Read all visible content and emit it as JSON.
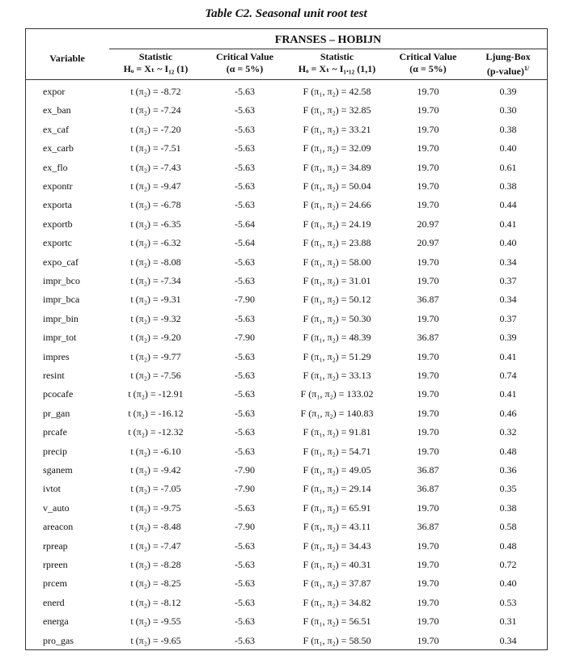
{
  "title": "Table C2. Seasonal unit root test",
  "table": {
    "group_header": "FRANSES – HOBIJN",
    "variable_header": "Variable",
    "columns": [
      {
        "lines": [
          "Statistic",
          "Hₒ = Xₜ ~ I₁₂ (1)"
        ]
      },
      {
        "lines": [
          "Critical Value",
          "(α = 5%)"
        ]
      },
      {
        "lines": [
          "Statistic",
          "Hₒ = Xₜ ~ I₁.₁₂ (1,1)"
        ]
      },
      {
        "lines": [
          "Critical Value",
          "(α = 5%)"
        ]
      },
      {
        "lines": [
          "Ljung-Box",
          "(p-value)"
        ],
        "note": "1/"
      }
    ],
    "rows": [
      [
        "expor",
        "t (π₂) = -8.72",
        "-5.63",
        "F (π₁, π₂) = 42.58",
        "19.70",
        "0.39"
      ],
      [
        "ex_ban",
        "t (π₂) = -7.24",
        "-5.63",
        "F (π₁, π₂) = 32.85",
        "19.70",
        "0.30"
      ],
      [
        "ex_caf",
        "t (π₂) = -7.20",
        "-5.63",
        "F (π₁, π₂) = 33.21",
        "19.70",
        "0.38"
      ],
      [
        "ex_carb",
        "t (π₂) = -7.51",
        "-5.63",
        "F (π₁, π₂) = 32.09",
        "19.70",
        "0.40"
      ],
      [
        "ex_flo",
        "t (π₂) = -7.43",
        "-5.63",
        "F (π₁, π₂) = 34.89",
        "19.70",
        "0.61"
      ],
      [
        "expontr",
        "t (π₂) = -9.47",
        "-5.63",
        "F (π₁, π₂) = 50.04",
        "19.70",
        "0.38"
      ],
      [
        "exporta",
        "t (π₂) = -6.78",
        "-5.63",
        "F (π₁, π₂) = 24.66",
        "19.70",
        "0.44"
      ],
      [
        "exportb",
        "t (π₂) = -6.35",
        "-5.64",
        "F (π₁, π₂) = 24.19",
        "20.97",
        "0.41"
      ],
      [
        "exportc",
        "t (π₂) = -6.32",
        "-5.64",
        "F (π₁, π₂) = 23.88",
        "20.97",
        "0.40"
      ],
      [
        "expo_caf",
        "t (π₂) = -8.08",
        "-5.63",
        "F (π₁, π₂) = 58.00",
        "19.70",
        "0.34"
      ],
      [
        "impr_bco",
        "t (π₂) = -7.34",
        "-5.63",
        "F (π₁, π₂) = 31.01",
        "19.70",
        "0.37"
      ],
      [
        "impr_bca",
        "t (π₂) = -9.31",
        "-7.90",
        "F (π₁, π₂) = 50.12",
        "36.87",
        "0.34"
      ],
      [
        "impr_bin",
        "t (π₂) = -9.32",
        "-5.63",
        "F (π₁, π₂) = 50.30",
        "19.70",
        "0.37"
      ],
      [
        "impr_tot",
        "t (π₂) = -9.20",
        "-7.90",
        "F (π₁, π₂) = 48.39",
        "36.87",
        "0.39"
      ],
      [
        "impres",
        "t (π₂) = -9.77",
        "-5.63",
        "F (π₁, π₂) = 51.29",
        "19.70",
        "0.41"
      ],
      [
        "resint",
        "t (π₂) = -7.56",
        "-5.63",
        "F (π₁, π₂) = 33.13",
        "19.70",
        "0.74"
      ],
      [
        "pcocafe",
        "t (π₂) = -12.91",
        "-5.63",
        "F (π₁, π₂) = 133.02",
        "19.70",
        "0.41"
      ],
      [
        "pr_gan",
        "t (π₂) = -16.12",
        "-5.63",
        "F (π₁, π₂) = 140.83",
        "19.70",
        "0.46"
      ],
      [
        "prcafe",
        "t (π₂) = -12.32",
        "-5.63",
        "F (π₁, π₂) = 91.81",
        "19.70",
        "0.32"
      ],
      [
        "precip",
        "t (π₂) = -6.10",
        "-5.63",
        "F (π₁, π₂) = 54.71",
        "19.70",
        "0.48"
      ],
      [
        "sganem",
        "t (π₂) = -9.42",
        "-7.90",
        "F (π₁, π₂) = 49.05",
        "36.87",
        "0.36"
      ],
      [
        "ivtot",
        "t (π₂) = -7.05",
        "-7.90",
        "F (π₁, π₂) = 29.14",
        "36.87",
        "0.35"
      ],
      [
        "v_auto",
        "t (π₂) = -9.75",
        "-5.63",
        "F (π₁, π₂) = 65.91",
        "19.70",
        "0.38"
      ],
      [
        "areacon",
        "t (π₂) = -8.48",
        "-7.90",
        "F (π₁, π₂) = 43.11",
        "36.87",
        "0.58"
      ],
      [
        "rpreap",
        "t (π₂) = -7.47",
        "-5.63",
        "F (π₁, π₂) = 34.43",
        "19.70",
        "0.48"
      ],
      [
        "rpreen",
        "t (π₂) = -8.28",
        "-5.63",
        "F (π₁, π₂) = 40.31",
        "19.70",
        "0.72"
      ],
      [
        "prcem",
        "t (π₂) = -8.25",
        "-5.63",
        "F (π₁, π₂) = 37.87",
        "19.70",
        "0.40"
      ],
      [
        "enerd",
        "t (π₂) = -8.12",
        "-5.63",
        "F (π₁, π₂) = 34.82",
        "19.70",
        "0.53"
      ],
      [
        "energa",
        "t (π₂) = -9.55",
        "-5.63",
        "F (π₁, π₂) = 56.51",
        "19.70",
        "0.31"
      ],
      [
        "pro_gas",
        "t (π₂) = -9.65",
        "-5.63",
        "F (π₁, π₂) = 58.50",
        "19.70",
        "0.34"
      ]
    ]
  }
}
